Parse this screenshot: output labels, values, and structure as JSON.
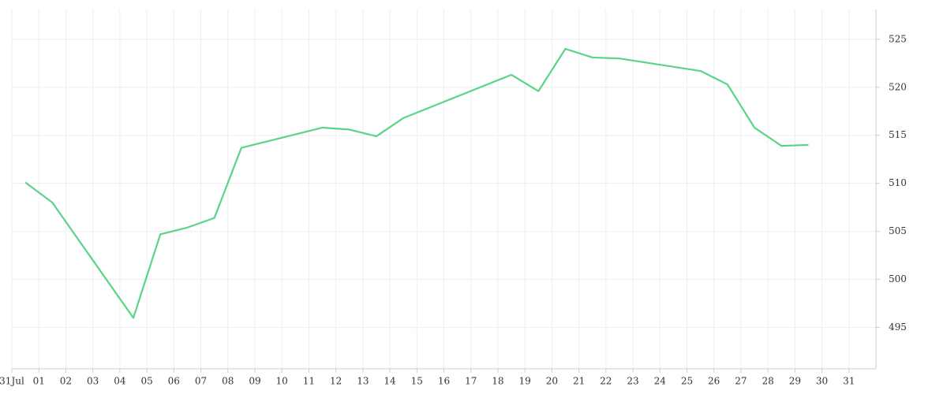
{
  "chart_data": {
    "type": "line",
    "x": [
      0.5,
      1.5,
      4.5,
      5.5,
      6.5,
      7.5,
      8.5,
      11.5,
      12.5,
      13.5,
      14.5,
      18.5,
      19.5,
      20.5,
      21.5,
      22.5,
      25.5,
      26.5,
      27.5,
      28.5,
      29.5
    ],
    "values": [
      510.1,
      508.0,
      496.0,
      504.7,
      505.4,
      506.4,
      513.7,
      515.8,
      515.6,
      514.9,
      516.8,
      521.3,
      519.6,
      524.0,
      523.1,
      523.0,
      521.7,
      520.3,
      515.8,
      513.9,
      514.0
    ],
    "color": "#5ad487",
    "xlim": [
      0,
      32
    ],
    "xticks": [
      {
        "value": 0,
        "label": "31Jul"
      },
      {
        "value": 1,
        "label": "01"
      },
      {
        "value": 2,
        "label": "02"
      },
      {
        "value": 3,
        "label": "03"
      },
      {
        "value": 4,
        "label": "04"
      },
      {
        "value": 5,
        "label": "05"
      },
      {
        "value": 6,
        "label": "06"
      },
      {
        "value": 7,
        "label": "07"
      },
      {
        "value": 8,
        "label": "08"
      },
      {
        "value": 9,
        "label": "09"
      },
      {
        "value": 10,
        "label": "10"
      },
      {
        "value": 11,
        "label": "11"
      },
      {
        "value": 12,
        "label": "12"
      },
      {
        "value": 13,
        "label": "13"
      },
      {
        "value": 14,
        "label": "14"
      },
      {
        "value": 15,
        "label": "15"
      },
      {
        "value": 16,
        "label": "16"
      },
      {
        "value": 17,
        "label": "17"
      },
      {
        "value": 18,
        "label": "18"
      },
      {
        "value": 19,
        "label": "19"
      },
      {
        "value": 20,
        "label": "20"
      },
      {
        "value": 21,
        "label": "21"
      },
      {
        "value": 22,
        "label": "22"
      },
      {
        "value": 23,
        "label": "23"
      },
      {
        "value": 24,
        "label": "24"
      },
      {
        "value": 25,
        "label": "25"
      },
      {
        "value": 26,
        "label": "26"
      },
      {
        "value": 27,
        "label": "27"
      },
      {
        "value": 28,
        "label": "28"
      },
      {
        "value": 29,
        "label": "29"
      },
      {
        "value": 30,
        "label": "30"
      },
      {
        "value": 31,
        "label": "31"
      }
    ],
    "ylim": [
      490.7,
      528.1
    ],
    "yticks": [
      495,
      500,
      505,
      510,
      515,
      520,
      525
    ],
    "grid": true
  }
}
